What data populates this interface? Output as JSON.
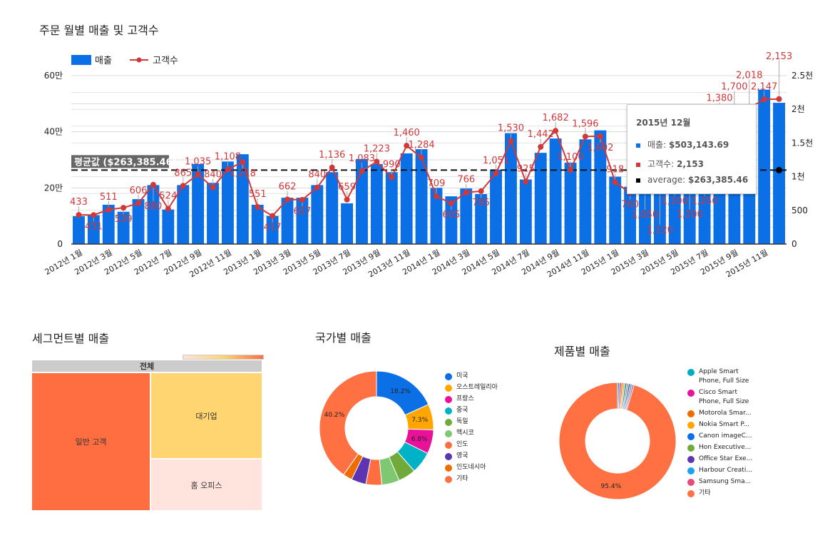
{
  "chart_data": [
    {
      "type": "bar+line",
      "title": "주문 월별 매출 및 고객수",
      "legend": [
        "매출",
        "고객수"
      ],
      "legend_position": "top-left",
      "categories": [
        "2012년 1월",
        "2012년 2월",
        "2012년 3월",
        "2012년 4월",
        "2012년 5월",
        "2012년 6월",
        "2012년 7월",
        "2012년 8월",
        "2012년 9월",
        "2012년 10월",
        "2012년 11월",
        "2012년 12월",
        "2013년 1월",
        "2013년 2월",
        "2013년 3월",
        "2013년 4월",
        "2013년 5월",
        "2013년 6월",
        "2013년 7월",
        "2013년 8월",
        "2013년 9월",
        "2013년 10월",
        "2013년 11월",
        "2013년 12월",
        "2014년 1월",
        "2014년 2월",
        "2014년 3월",
        "2014년 4월",
        "2014년 5월",
        "2014년 6월",
        "2014년 7월",
        "2014년 8월",
        "2014년 9월",
        "2014년 10월",
        "2014년 11월",
        "2014년 12월",
        "2015년 1월",
        "2015년 2월",
        "2015년 3월",
        "2015년 4월",
        "2015년 5월",
        "2015년 6월",
        "2015년 7월",
        "2015년 8월",
        "2015년 9월",
        "2015년 10월",
        "2015년 11월",
        "2015년 12월"
      ],
      "series": [
        {
          "name": "매출",
          "axis": "left",
          "color": "#0b6fe6",
          "values": [
            99000,
            103000,
            140000,
            115000,
            160000,
            210000,
            123000,
            210000,
            285000,
            218000,
            294000,
            320000,
            140000,
            100000,
            165000,
            165000,
            210000,
            256000,
            145000,
            303000,
            285000,
            256000,
            323000,
            338000,
            200000,
            170000,
            198000,
            178000,
            265000,
            395000,
            230000,
            325000,
            376000,
            290000,
            373000,
            405000,
            240000,
            204000,
            280000,
            300000,
            262000,
            310000,
            330000,
            340000,
            360000,
            410000,
            550000,
            503143.69
          ]
        },
        {
          "name": "고객수",
          "axis": "right",
          "color": "#d0383a",
          "values": [
            433,
            431,
            511,
            539,
            606,
            880,
            524,
            865,
            1035,
            840,
            1108,
            1218,
            551,
            417,
            662,
            657,
            840,
            1136,
            659,
            1083,
            1223,
            990,
            1460,
            1284,
            709,
            605,
            766,
            785,
            1051,
            1530,
            925,
            1442,
            1682,
            1100,
            1596,
            1602,
            918,
            760,
            1050,
            1120,
            1100,
            1200,
            1250,
            1380,
            1700,
            2018,
            2147,
            2153
          ]
        }
      ],
      "average": {
        "value": 263385.46,
        "label": "평균값 ($263,385.46)"
      },
      "left_axis": {
        "ticks": [
          "0",
          "20만",
          "40만",
          "60만"
        ],
        "range": [
          0,
          600000
        ]
      },
      "right_axis": {
        "ticks": [
          "0",
          "500",
          "1천",
          "1.5천",
          "2천",
          "2.5천"
        ],
        "range": [
          0,
          2500
        ]
      },
      "tooltip": {
        "title": "2015년 12월",
        "rows": [
          {
            "label": "매출: ",
            "value": "$503,143.69",
            "color": "#0b6fe6"
          },
          {
            "label": "고객수: ",
            "value": "2,153",
            "color": "#d0383a"
          },
          {
            "label": "average: ",
            "value": "$263,385.46",
            "color": "#000000"
          }
        ]
      }
    },
    {
      "type": "treemap",
      "title": "세그먼트별 매출",
      "root": "전체",
      "cells": [
        {
          "label": "일반 고객",
          "color": "#ff6e40"
        },
        {
          "label": "대기업",
          "color": "#ffd572"
        },
        {
          "label": "홈 오피스",
          "color": "#ffe3dc"
        }
      ]
    },
    {
      "type": "pie",
      "title": "국가별 매출",
      "slices": [
        {
          "label": "미국",
          "value": 18.2,
          "color": "#0b6fe6",
          "show": "18.2%"
        },
        {
          "label": "오스트레일리아",
          "value": 7.3,
          "color": "#ffa600",
          "show": "7.3%"
        },
        {
          "label": "프랑스",
          "value": 6.8,
          "color": "#e8119a",
          "show": "6.8%"
        },
        {
          "label": "중국",
          "value": 6.2,
          "color": "#00b2c6"
        },
        {
          "label": "독일",
          "value": 5.0,
          "color": "#6faa3a"
        },
        {
          "label": "멕시코",
          "value": 5.0,
          "color": "#7dc870"
        },
        {
          "label": "인도",
          "value": 4.5,
          "color": "#ff6e40"
        },
        {
          "label": "영국",
          "value": 4.2,
          "color": "#5e35b1"
        },
        {
          "label": "인도네시아",
          "value": 2.6,
          "color": "#ef6c00"
        },
        {
          "label": "기타",
          "value": 40.2,
          "color": "#ff7043",
          "show": "40.2%"
        }
      ]
    },
    {
      "type": "pie",
      "title": "제품별 매출",
      "slices": [
        {
          "label": "Apple Smart Phone, Full Size",
          "value": 0.52,
          "color": "#00acc1"
        },
        {
          "label": "Cisco Smart Phone, Full Size",
          "value": 0.51,
          "color": "#e8119a"
        },
        {
          "label": "Motorola Smar...",
          "value": 0.51,
          "color": "#ef6c00"
        },
        {
          "label": "Nokia Smart P...",
          "value": 0.51,
          "color": "#ffa600"
        },
        {
          "label": "Canon imageC...",
          "value": 0.51,
          "color": "#0b6fe6"
        },
        {
          "label": "Hon Executive...",
          "value": 0.51,
          "color": "#6faa3a"
        },
        {
          "label": "Office Star Exe...",
          "value": 0.51,
          "color": "#5e35b1"
        },
        {
          "label": "Harbour Creati...",
          "value": 0.51,
          "color": "#1aa3e8"
        },
        {
          "label": "Samsung Sma...",
          "value": 0.51,
          "color": "#e84a7a"
        },
        {
          "label": "기타",
          "value": 95.4,
          "color": "#ff7043",
          "show": "95.4%"
        }
      ]
    }
  ]
}
